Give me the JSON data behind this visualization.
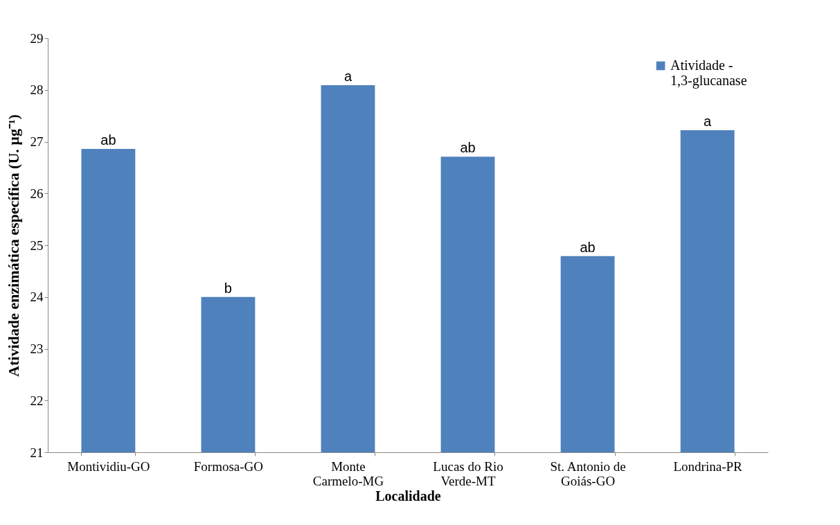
{
  "chart_data": {
    "type": "bar",
    "xlabel": "Localidade",
    "ylabel": "Atividade enzimática específica (U. µg⁻¹)",
    "categories": [
      "Montividiu-GO",
      "Formosa-GO",
      "Monte\nCarmelo-MG",
      "Lucas do Rio\nVerde-MT",
      "St. Antonio de\nGoiás-GO",
      "Londrina-PR"
    ],
    "series": [
      {
        "name": "Atividade  -\n1,3-glucanase",
        "color": "#4f81bd",
        "values": [
          26.86,
          24.0,
          28.09,
          26.71,
          24.79,
          27.22
        ]
      }
    ],
    "ylim": [
      21,
      29
    ],
    "yticks": [
      21,
      22,
      23,
      24,
      25,
      26,
      27,
      28,
      29
    ],
    "grid": false,
    "legend": "top right",
    "annotations": [
      {
        "text": "ab",
        "x": "Montividiu-GO",
        "y": 26.86
      },
      {
        "text": "b",
        "x": "Formosa-GO",
        "y": 24.0
      },
      {
        "text": "a",
        "x": "Monte\nCarmelo-MG",
        "y": 28.09
      },
      {
        "text": "ab",
        "x": "Lucas do Rio\nVerde-MT",
        "y": 26.71
      },
      {
        "text": "ab",
        "x": "St. Antonio de\nGoiás-GO",
        "y": 24.79
      },
      {
        "text": "a",
        "x": "Londrina-PR",
        "y": 27.22
      }
    ]
  }
}
